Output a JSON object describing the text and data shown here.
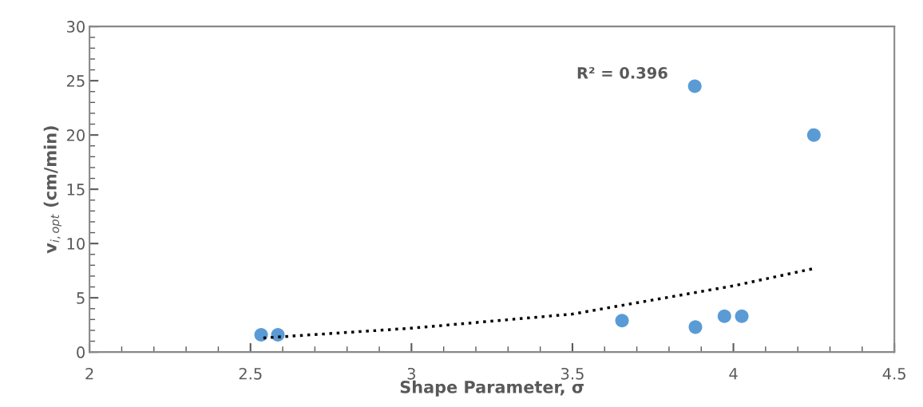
{
  "chart_data": {
    "type": "scatter",
    "xlabel": "Shape Parameter, σ",
    "ylabel": "v$_{i,opt}$ (cm/min)",
    "annotations": [
      "R² = 0.396"
    ],
    "xlim": [
      2,
      4.5
    ],
    "xticks": [
      2,
      2.5,
      3,
      3.5,
      4,
      4.5
    ],
    "ylim": [
      0,
      30
    ],
    "yticks": [
      0,
      5,
      10,
      15,
      20,
      25,
      30
    ],
    "grid": false,
    "marker": "circle",
    "series": [
      {
        "color": "#5b9bd5",
        "x": [
          2.533,
          2.585,
          3.654,
          3.88,
          3.882,
          3.972,
          4.026,
          4.25
        ],
        "values": [
          1.6,
          1.6,
          2.9,
          24.5,
          2.3,
          3.3,
          3.3,
          20.0
        ]
      },
      {
        "type": "line",
        "color": "#000000",
        "line_style": "dotted",
        "marker": "none",
        "x": [
          2.54,
          3.0,
          3.5,
          4.0,
          4.25
        ],
        "values": [
          1.3,
          2.2,
          3.5,
          6.1,
          7.7
        ]
      }
    ]
  }
}
